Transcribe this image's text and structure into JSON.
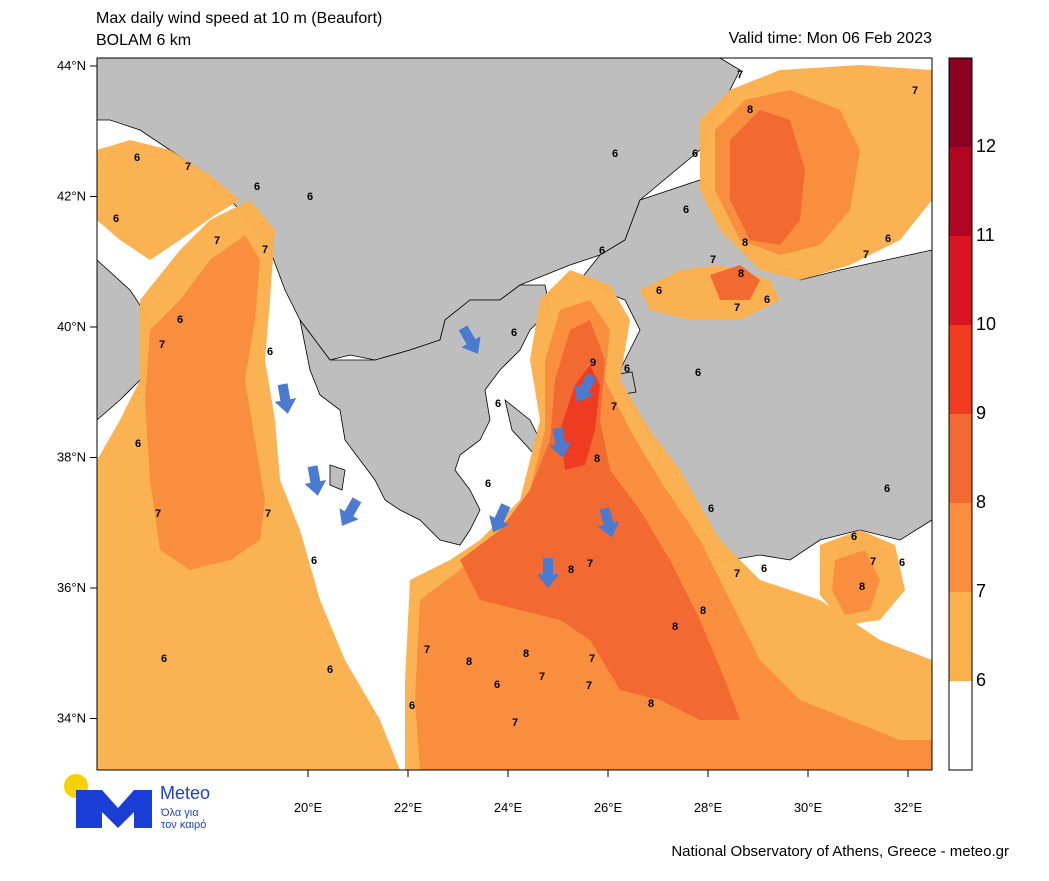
{
  "header": {
    "title_line1": "Max daily wind speed at 10 m (Beaufort)",
    "title_line2": "BOLAM 6 km",
    "valid_time": "Valid time: Mon 06 Feb 2023"
  },
  "footer": {
    "credit": "National Observatory of Athens, Greece - meteo.gr"
  },
  "logo": {
    "word": "Meteo",
    "tagline_1": "Όλα για",
    "tagline_2": "τον καιρό",
    "circle_color": "#f5d100",
    "mark_color": "#1b3fd6"
  },
  "axes": {
    "lat_labels": [
      "44°N",
      "42°N",
      "40°N",
      "38°N",
      "36°N",
      "34°N"
    ],
    "lon_labels": [
      "20°E",
      "22°E",
      "24°E",
      "26°E",
      "28°E",
      "30°E",
      "32°E"
    ]
  },
  "colorbar": {
    "labels": [
      "12",
      "11",
      "10",
      "9",
      "8",
      "7",
      "6"
    ],
    "colors": [
      "#8b0021",
      "#b20524",
      "#d8141f",
      "#ef3b1f",
      "#f26a31",
      "#f88e3e",
      "#fbb04d",
      "#ffffff"
    ]
  },
  "palette": {
    "land": "#bebebe",
    "sea": "#ffffff",
    "bf6": "#fbb04d",
    "bf7": "#f88e3e",
    "bf8": "#f26a31",
    "bf9": "#ef3b1f",
    "arrow": "#4a7bd0"
  },
  "contour_labels": [
    "6",
    "7",
    "8",
    "9"
  ]
}
